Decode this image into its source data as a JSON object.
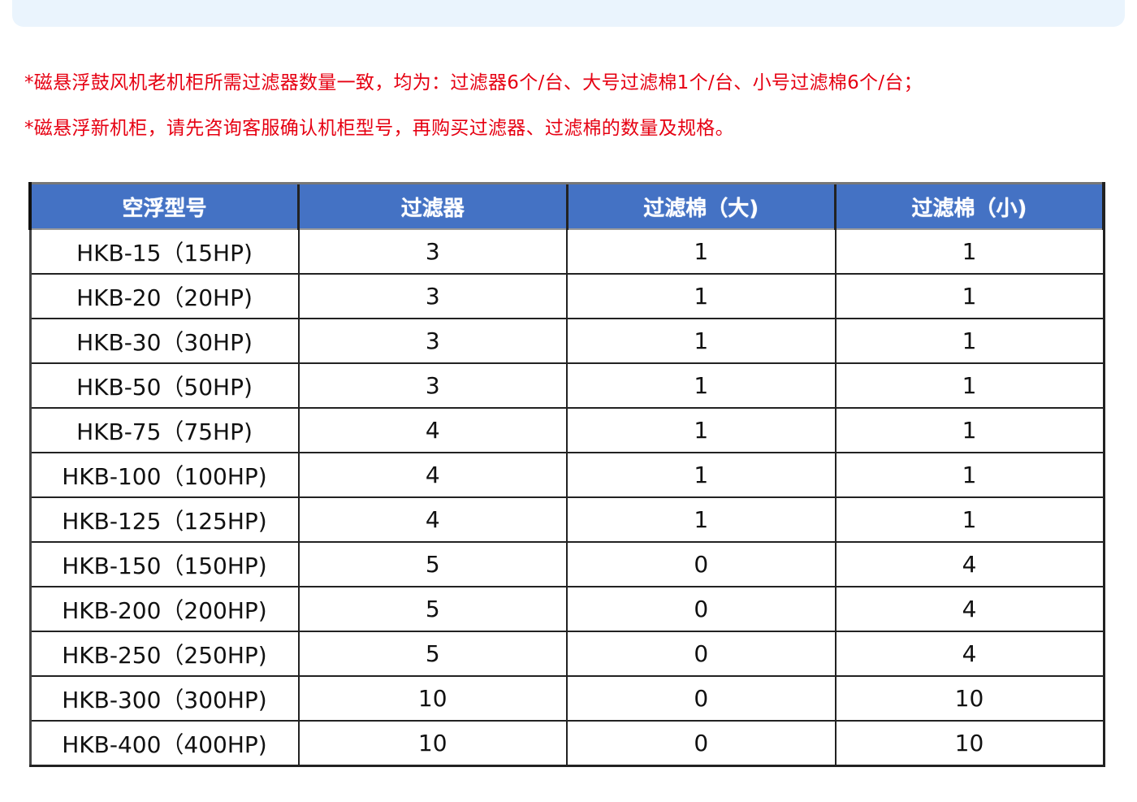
{
  "notes": [
    "*磁悬浮鼓风机老机柜所需过滤器数量一致，均为：过滤器6个/台、大号过滤棉1个/台、小号过滤棉6个/台；",
    "*磁悬浮新机柜，请先咨询客服确认机柜型号，再购买过滤器、过滤棉的数量及规格。"
  ],
  "table": {
    "headers": [
      "空浮型号",
      "过滤器",
      "过滤棉（大)",
      "过滤棉（小)"
    ],
    "rows": [
      [
        "HKB-15（15HP)",
        "3",
        "1",
        "1"
      ],
      [
        "HKB-20（20HP)",
        "3",
        "1",
        "1"
      ],
      [
        "HKB-30（30HP)",
        "3",
        "1",
        "1"
      ],
      [
        "HKB-50（50HP)",
        "3",
        "1",
        "1"
      ],
      [
        "HKB-75（75HP)",
        "4",
        "1",
        "1"
      ],
      [
        "HKB-100（100HP)",
        "4",
        "1",
        "1"
      ],
      [
        "HKB-125（125HP)",
        "4",
        "1",
        "1"
      ],
      [
        "HKB-150（150HP)",
        "5",
        "0",
        "4"
      ],
      [
        "HKB-200（200HP)",
        "5",
        "0",
        "4"
      ],
      [
        "HKB-250（250HP)",
        "5",
        "0",
        "4"
      ],
      [
        "HKB-300（300HP)",
        "10",
        "0",
        "10"
      ],
      [
        "HKB-400（400HP)",
        "10",
        "0",
        "10"
      ]
    ]
  },
  "colors": {
    "note": "#e60012",
    "header_bg": "#4472c4",
    "top_panel": "#eaf4fd"
  }
}
